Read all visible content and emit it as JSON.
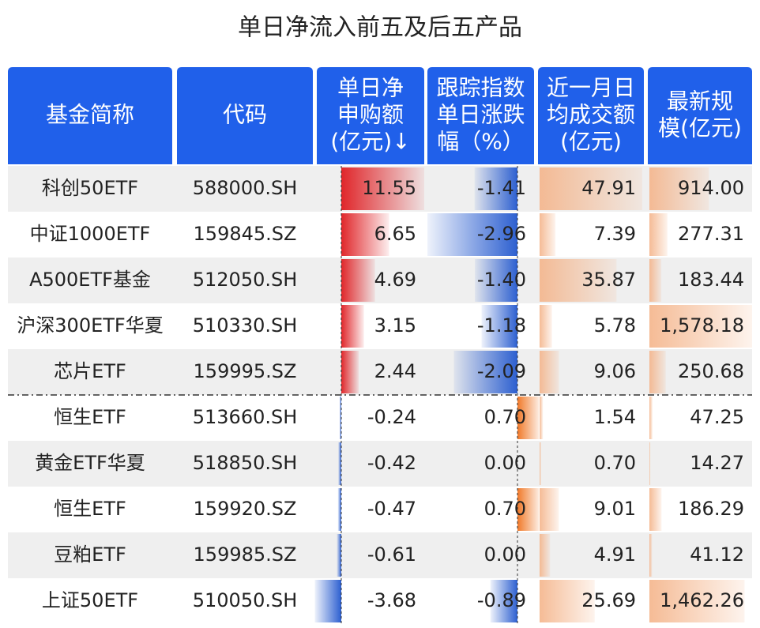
{
  "title": "单日净流入前五及后五产品",
  "table": {
    "headers": [
      [
        "基金简称"
      ],
      [
        "代码"
      ],
      [
        "单日净",
        "申购额",
        "(亿元)↓"
      ],
      [
        "跟踪指数",
        "单日涨跌",
        "幅（%）"
      ],
      [
        "近一月日",
        "均成交额",
        "(亿元)"
      ],
      [
        "最新规",
        "模(亿元)"
      ]
    ],
    "rows": [
      [
        "科创50ETF",
        "588000.SH",
        "11.55",
        "-1.41",
        "47.91",
        "914.00"
      ],
      [
        "中证1000ETF",
        "159845.SZ",
        "6.65",
        "-2.96",
        "7.39",
        "277.31"
      ],
      [
        "A500ETF基金",
        "512050.SH",
        "4.69",
        "-1.40",
        "35.87",
        "183.44"
      ],
      [
        "沪深300ETF华夏",
        "510330.SH",
        "3.15",
        "-1.18",
        "5.78",
        "1,578.18"
      ],
      [
        "芯片ETF",
        "159995.SZ",
        "2.44",
        "-2.09",
        "9.06",
        "250.68"
      ],
      [
        "恒生ETF",
        "513660.SH",
        "-0.24",
        "0.70",
        "1.54",
        "47.25"
      ],
      [
        "黄金ETF华夏",
        "518850.SH",
        "-0.42",
        "0.00",
        "0.70",
        "14.27"
      ],
      [
        "恒生ETF",
        "159920.SZ",
        "-0.47",
        "0.70",
        "9.01",
        "186.29"
      ],
      [
        "豆粕ETF",
        "159985.SZ",
        "-0.61",
        "0.00",
        "4.91",
        "41.12"
      ],
      [
        "上证50ETF",
        "510050.SH",
        "-3.68",
        "-0.89",
        "25.69",
        "1,462.26"
      ]
    ]
  }
}
